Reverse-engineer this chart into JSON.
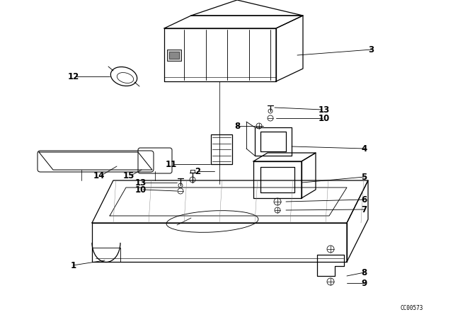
{
  "bg_color": "#ffffff",
  "watermark": "CC00573",
  "lw": 0.9,
  "fig_w": 6.4,
  "fig_h": 4.48,
  "dpi": 100
}
